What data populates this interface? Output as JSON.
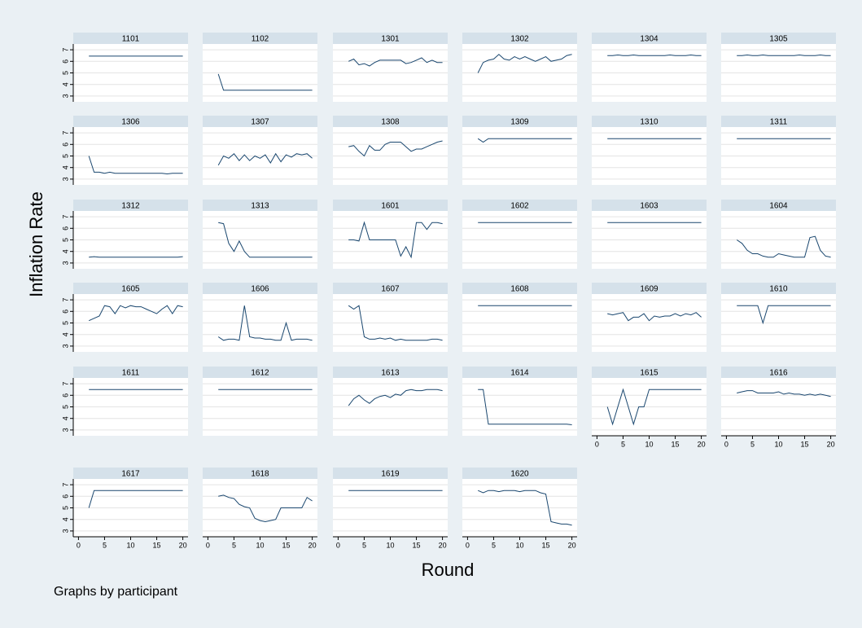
{
  "chart_data": {
    "type": "line",
    "y_label": "Inflation Rate",
    "x_label": "Round",
    "note": "Graphs by participant",
    "color": "#1a476f",
    "grid": true,
    "x": [
      2,
      3,
      4,
      5,
      6,
      7,
      8,
      9,
      10,
      11,
      12,
      13,
      14,
      15,
      16,
      17,
      18,
      19,
      20
    ],
    "xlim": [
      -1,
      21
    ],
    "xticks": [
      0,
      5,
      10,
      15,
      20
    ],
    "ylim": [
      2.5,
      7.5
    ],
    "yticks": [
      3,
      4,
      5,
      6,
      7
    ],
    "series": [
      {
        "name": "1101",
        "values": [
          6.45,
          6.45,
          6.45,
          6.45,
          6.45,
          6.45,
          6.45,
          6.45,
          6.45,
          6.45,
          6.45,
          6.45,
          6.45,
          6.45,
          6.45,
          6.45,
          6.45,
          6.45,
          6.45
        ]
      },
      {
        "name": "1102",
        "values": [
          4.9,
          3.5,
          3.5,
          3.5,
          3.5,
          3.5,
          3.5,
          3.5,
          3.5,
          3.5,
          3.5,
          3.5,
          3.5,
          3.5,
          3.5,
          3.5,
          3.5,
          3.5,
          3.5
        ]
      },
      {
        "name": "1301",
        "values": [
          6.0,
          6.2,
          5.7,
          5.8,
          5.6,
          5.9,
          6.1,
          6.1,
          6.1,
          6.1,
          6.1,
          5.8,
          5.9,
          6.1,
          6.3,
          5.9,
          6.1,
          5.9,
          5.9
        ]
      },
      {
        "name": "1302",
        "values": [
          5.0,
          5.9,
          6.1,
          6.2,
          6.6,
          6.2,
          6.1,
          6.4,
          6.2,
          6.4,
          6.2,
          6.0,
          6.2,
          6.4,
          6.0,
          6.1,
          6.2,
          6.5,
          6.6
        ]
      },
      {
        "name": "1304",
        "values": [
          6.5,
          6.5,
          6.55,
          6.5,
          6.5,
          6.55,
          6.5,
          6.5,
          6.5,
          6.5,
          6.5,
          6.5,
          6.55,
          6.5,
          6.5,
          6.5,
          6.55,
          6.5,
          6.5
        ]
      },
      {
        "name": "1305",
        "values": [
          6.5,
          6.5,
          6.55,
          6.5,
          6.5,
          6.55,
          6.5,
          6.5,
          6.5,
          6.5,
          6.5,
          6.5,
          6.55,
          6.5,
          6.5,
          6.5,
          6.55,
          6.5,
          6.5
        ]
      },
      {
        "name": "1306",
        "values": [
          5.0,
          3.6,
          3.6,
          3.5,
          3.6,
          3.5,
          3.5,
          3.5,
          3.5,
          3.5,
          3.5,
          3.5,
          3.5,
          3.5,
          3.5,
          3.45,
          3.5,
          3.5,
          3.5
        ]
      },
      {
        "name": "1307",
        "values": [
          4.2,
          5.0,
          4.8,
          5.2,
          4.6,
          5.1,
          4.6,
          5.0,
          4.8,
          5.1,
          4.4,
          5.2,
          4.5,
          5.1,
          4.9,
          5.2,
          5.1,
          5.2,
          4.8
        ]
      },
      {
        "name": "1308",
        "values": [
          5.8,
          5.9,
          5.4,
          5.0,
          5.9,
          5.5,
          5.5,
          6.0,
          6.2,
          6.2,
          6.2,
          5.8,
          5.4,
          5.6,
          5.6,
          5.8,
          6.0,
          6.2,
          6.3
        ]
      },
      {
        "name": "1309",
        "values": [
          6.5,
          6.2,
          6.5,
          6.5,
          6.5,
          6.5,
          6.5,
          6.5,
          6.5,
          6.5,
          6.5,
          6.5,
          6.5,
          6.5,
          6.5,
          6.5,
          6.5,
          6.5,
          6.5
        ]
      },
      {
        "name": "1310",
        "values": [
          6.5,
          6.5,
          6.5,
          6.5,
          6.5,
          6.5,
          6.5,
          6.5,
          6.5,
          6.5,
          6.5,
          6.5,
          6.5,
          6.5,
          6.5,
          6.5,
          6.5,
          6.5,
          6.5
        ]
      },
      {
        "name": "1311",
        "values": [
          6.5,
          6.5,
          6.5,
          6.5,
          6.5,
          6.5,
          6.5,
          6.5,
          6.5,
          6.5,
          6.5,
          6.5,
          6.5,
          6.5,
          6.5,
          6.5,
          6.5,
          6.5,
          6.5
        ]
      },
      {
        "name": "1312",
        "values": [
          3.5,
          3.55,
          3.5,
          3.5,
          3.5,
          3.5,
          3.5,
          3.5,
          3.5,
          3.5,
          3.5,
          3.5,
          3.5,
          3.5,
          3.5,
          3.5,
          3.5,
          3.5,
          3.55
        ]
      },
      {
        "name": "1313",
        "values": [
          6.5,
          6.4,
          4.7,
          4.0,
          4.9,
          4.0,
          3.5,
          3.5,
          3.5,
          3.5,
          3.5,
          3.5,
          3.5,
          3.5,
          3.5,
          3.5,
          3.5,
          3.5,
          3.5
        ]
      },
      {
        "name": "1601",
        "values": [
          5.0,
          5.0,
          4.9,
          6.5,
          5.0,
          5.0,
          5.0,
          5.0,
          5.0,
          5.0,
          3.6,
          4.4,
          3.5,
          6.5,
          6.5,
          5.9,
          6.5,
          6.5,
          6.4
        ]
      },
      {
        "name": "1602",
        "values": [
          6.5,
          6.5,
          6.5,
          6.5,
          6.5,
          6.5,
          6.5,
          6.5,
          6.5,
          6.5,
          6.5,
          6.5,
          6.5,
          6.5,
          6.5,
          6.5,
          6.5,
          6.5,
          6.5
        ]
      },
      {
        "name": "1603",
        "values": [
          6.5,
          6.5,
          6.5,
          6.5,
          6.5,
          6.5,
          6.5,
          6.5,
          6.5,
          6.5,
          6.5,
          6.5,
          6.5,
          6.5,
          6.5,
          6.5,
          6.5,
          6.5,
          6.5
        ]
      },
      {
        "name": "1604",
        "values": [
          5.0,
          4.7,
          4.1,
          3.8,
          3.8,
          3.6,
          3.5,
          3.5,
          3.8,
          3.7,
          3.6,
          3.5,
          3.5,
          3.5,
          5.2,
          5.3,
          4.1,
          3.6,
          3.5
        ]
      },
      {
        "name": "1605",
        "values": [
          5.2,
          5.4,
          5.6,
          6.5,
          6.4,
          5.8,
          6.5,
          6.3,
          6.5,
          6.4,
          6.4,
          6.2,
          6.0,
          5.8,
          6.2,
          6.5,
          5.8,
          6.5,
          6.4
        ]
      },
      {
        "name": "1606",
        "values": [
          3.8,
          3.5,
          3.6,
          3.6,
          3.5,
          6.5,
          3.8,
          3.7,
          3.7,
          3.6,
          3.6,
          3.5,
          3.5,
          5.0,
          3.5,
          3.6,
          3.6,
          3.6,
          3.5
        ]
      },
      {
        "name": "1607",
        "values": [
          6.5,
          6.2,
          6.5,
          3.8,
          3.6,
          3.6,
          3.7,
          3.6,
          3.7,
          3.5,
          3.6,
          3.5,
          3.5,
          3.5,
          3.5,
          3.5,
          3.6,
          3.6,
          3.5
        ]
      },
      {
        "name": "1608",
        "values": [
          6.5,
          6.5,
          6.5,
          6.5,
          6.5,
          6.5,
          6.5,
          6.5,
          6.5,
          6.5,
          6.5,
          6.5,
          6.5,
          6.5,
          6.5,
          6.5,
          6.5,
          6.5,
          6.5
        ]
      },
      {
        "name": "1609",
        "values": [
          5.8,
          5.7,
          5.8,
          5.9,
          5.2,
          5.5,
          5.5,
          5.8,
          5.2,
          5.6,
          5.5,
          5.6,
          5.6,
          5.8,
          5.6,
          5.8,
          5.7,
          5.9,
          5.5
        ]
      },
      {
        "name": "1610",
        "values": [
          6.5,
          6.5,
          6.5,
          6.5,
          6.5,
          5.0,
          6.5,
          6.5,
          6.5,
          6.5,
          6.5,
          6.5,
          6.5,
          6.5,
          6.5,
          6.5,
          6.5,
          6.5,
          6.5
        ]
      },
      {
        "name": "1611",
        "values": [
          6.5,
          6.5,
          6.5,
          6.5,
          6.5,
          6.5,
          6.5,
          6.5,
          6.5,
          6.5,
          6.5,
          6.5,
          6.5,
          6.5,
          6.5,
          6.5,
          6.5,
          6.5,
          6.5
        ]
      },
      {
        "name": "1612",
        "values": [
          6.5,
          6.5,
          6.5,
          6.5,
          6.5,
          6.5,
          6.5,
          6.5,
          6.5,
          6.5,
          6.5,
          6.5,
          6.5,
          6.5,
          6.5,
          6.5,
          6.5,
          6.5,
          6.5
        ]
      },
      {
        "name": "1613",
        "values": [
          5.1,
          5.7,
          6.0,
          5.6,
          5.3,
          5.7,
          5.9,
          6.0,
          5.8,
          6.1,
          6.0,
          6.4,
          6.5,
          6.4,
          6.4,
          6.5,
          6.5,
          6.5,
          6.4
        ]
      },
      {
        "name": "1614",
        "values": [
          6.5,
          6.5,
          3.5,
          3.5,
          3.5,
          3.5,
          3.5,
          3.5,
          3.5,
          3.5,
          3.5,
          3.5,
          3.5,
          3.5,
          3.5,
          3.5,
          3.5,
          3.5,
          3.45
        ]
      },
      {
        "name": "1615",
        "values": [
          5.0,
          3.5,
          5.0,
          6.5,
          5.0,
          3.5,
          5.0,
          5.0,
          6.5,
          6.5,
          6.5,
          6.5,
          6.5,
          6.5,
          6.5,
          6.5,
          6.5,
          6.5,
          6.5
        ]
      },
      {
        "name": "1616",
        "values": [
          6.2,
          6.3,
          6.4,
          6.4,
          6.2,
          6.2,
          6.2,
          6.2,
          6.3,
          6.1,
          6.2,
          6.1,
          6.1,
          6.0,
          6.1,
          6.0,
          6.1,
          6.0,
          5.9
        ]
      },
      {
        "name": "1617",
        "values": [
          5.0,
          6.5,
          6.5,
          6.5,
          6.5,
          6.5,
          6.5,
          6.5,
          6.5,
          6.5,
          6.5,
          6.5,
          6.5,
          6.5,
          6.5,
          6.5,
          6.5,
          6.5,
          6.5
        ]
      },
      {
        "name": "1618",
        "values": [
          6.0,
          6.1,
          5.9,
          5.8,
          5.3,
          5.1,
          5.0,
          4.1,
          3.9,
          3.8,
          3.9,
          4.0,
          5.0,
          5.0,
          5.0,
          5.0,
          5.0,
          5.9,
          5.6
        ]
      },
      {
        "name": "1619",
        "values": [
          6.5,
          6.5,
          6.5,
          6.5,
          6.5,
          6.5,
          6.5,
          6.5,
          6.5,
          6.5,
          6.5,
          6.5,
          6.5,
          6.5,
          6.5,
          6.5,
          6.5,
          6.5,
          6.5
        ]
      },
      {
        "name": "1620",
        "values": [
          6.5,
          6.3,
          6.5,
          6.5,
          6.4,
          6.5,
          6.5,
          6.5,
          6.4,
          6.5,
          6.5,
          6.5,
          6.3,
          6.2,
          3.8,
          3.7,
          3.6,
          3.6,
          3.5
        ]
      }
    ]
  }
}
